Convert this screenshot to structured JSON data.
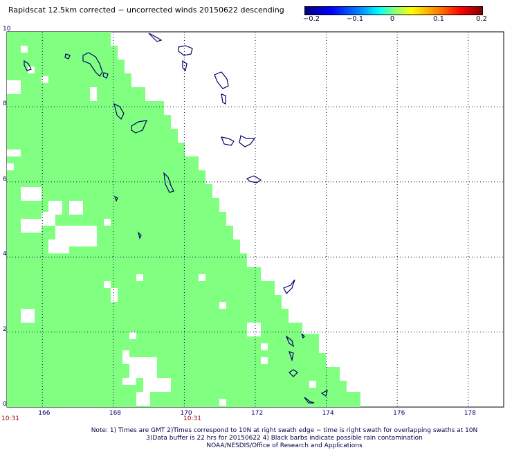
{
  "title": "Rapidscat 12.5km corrected − uncorrected winds 20150622 descending",
  "colorbar": {
    "labels": [
      "−0.2",
      "−0.1",
      "0",
      "0.1",
      "0.2"
    ],
    "range": [
      -0.2,
      0.2
    ]
  },
  "map": {
    "lon_range": [
      165,
      179
    ],
    "lat_range": [
      0,
      10
    ],
    "lon_ticks": [
      "166",
      "168",
      "170",
      "172",
      "174",
      "176",
      "178"
    ],
    "lat_ticks": [
      "0",
      "2",
      "4",
      "6",
      "8",
      "10"
    ],
    "swath_color": "#80ff80",
    "land_outline_color": "#000066",
    "grid": "dotted"
  },
  "times": [
    "10:31",
    "10:31"
  ],
  "notes": [
    "Note: 1) Times are GMT 2)Times correspond to 10N at right swath edge − time is right swath for overlapping swaths at 10N",
    "3)Data buffer is 22 hrs for 20150622 4) Black barbs indicate possible rain contamination",
    "NOAA/NESDIS/Office of Research and Applications"
  ]
}
